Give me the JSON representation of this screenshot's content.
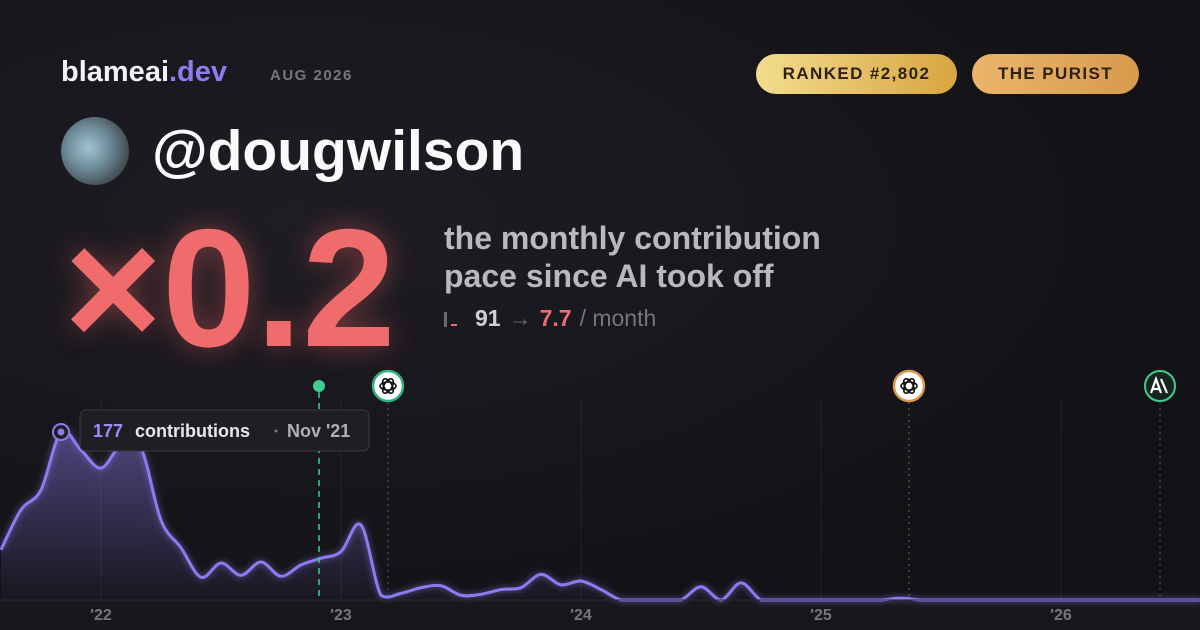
{
  "brand": {
    "name": "blameai",
    "tld": ".dev",
    "date": "AUG 2026"
  },
  "badges": [
    "RANKED #2,802",
    "THE PURIST"
  ],
  "handle": "@dougwilson",
  "multiplier": "×0.2",
  "caption": "the monthly contribution pace since AI took off",
  "pace": {
    "before": "91",
    "arrow": "→",
    "after": "7.7",
    "unit": "/ month"
  },
  "chart_data": {
    "type": "area",
    "categories": [
      null,
      null,
      null,
      null,
      null,
      "'22",
      null,
      null,
      null,
      null,
      null,
      null,
      null,
      null,
      null,
      null,
      null,
      "'23",
      null,
      null,
      null,
      null,
      null,
      null,
      null,
      null,
      null,
      null,
      null,
      "'24",
      null,
      null,
      null,
      null,
      null,
      null,
      null,
      null,
      null,
      null,
      null,
      "'25",
      null,
      null,
      null,
      null,
      null,
      null,
      null,
      null,
      null,
      null,
      null,
      "'26",
      null,
      null,
      null,
      null,
      null,
      null,
      null
    ],
    "values": [
      53,
      95,
      116,
      177,
      158,
      139,
      163,
      160,
      84,
      55,
      24,
      39,
      26,
      40,
      25,
      37,
      44,
      51,
      79,
      5,
      7,
      13,
      15,
      5,
      6,
      11,
      13,
      27,
      16,
      20,
      11,
      0,
      0,
      0,
      0,
      14,
      0,
      18,
      0,
      0,
      0,
      0,
      0,
      0,
      0,
      2,
      0,
      0,
      0,
      0,
      0,
      0,
      0,
      0,
      0,
      0,
      0,
      0,
      0,
      0,
      0
    ],
    "color": "#8b7cf0",
    "ylim": [
      0,
      200
    ],
    "grid": true,
    "tooltip": {
      "label": "contributions",
      "date": "Nov '21"
    }
  }
}
